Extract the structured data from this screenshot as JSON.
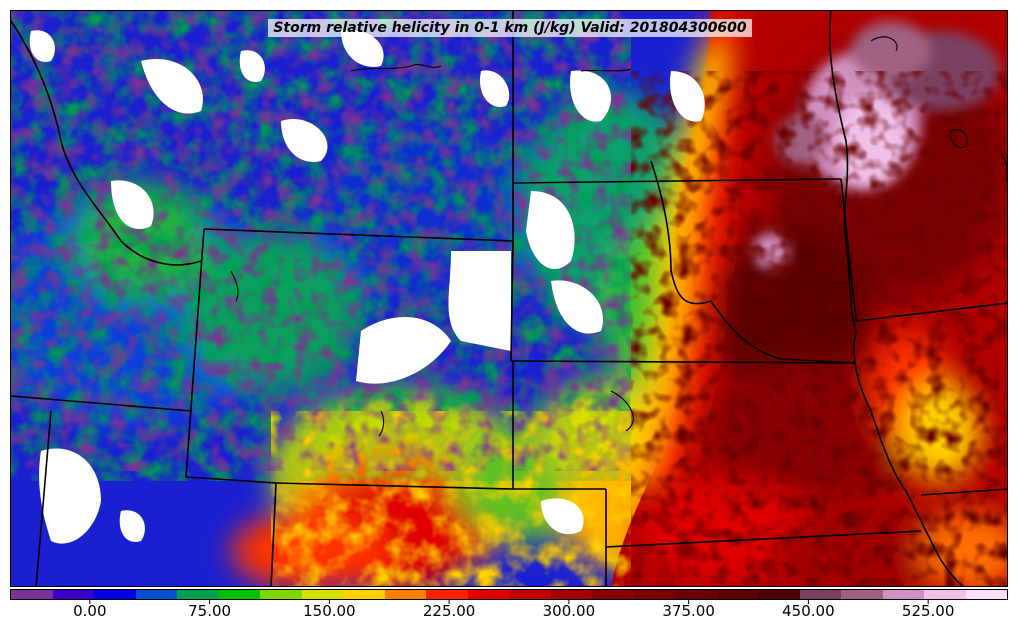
{
  "title": "Storm relative helicity in 0-1 km (J/kg) Valid: 201804300600",
  "colorbar": {
    "min": -50,
    "max": 575,
    "colors": [
      "#7b3294",
      "#3a00c8",
      "#0000e6",
      "#0050d0",
      "#00a050",
      "#00c000",
      "#80d800",
      "#d8e000",
      "#ffd000",
      "#ff8000",
      "#ff2000",
      "#e00000",
      "#c00000",
      "#a00000",
      "#8a0000",
      "#7a0000",
      "#6a0000",
      "#5a0000",
      "#4a0000",
      "#7a4060",
      "#a06080",
      "#d090c0",
      "#f0c0e8",
      "#ffe0f8"
    ],
    "tick_labels": [
      "0.00",
      "75.00",
      "150.00",
      "225.00",
      "300.00",
      "375.00",
      "450.00",
      "525.00"
    ],
    "tick_values": [
      0,
      75,
      150,
      225,
      300,
      375,
      450,
      525
    ]
  },
  "map_colors": {
    "no_data": "#ffffff",
    "boundary": "#000000"
  }
}
